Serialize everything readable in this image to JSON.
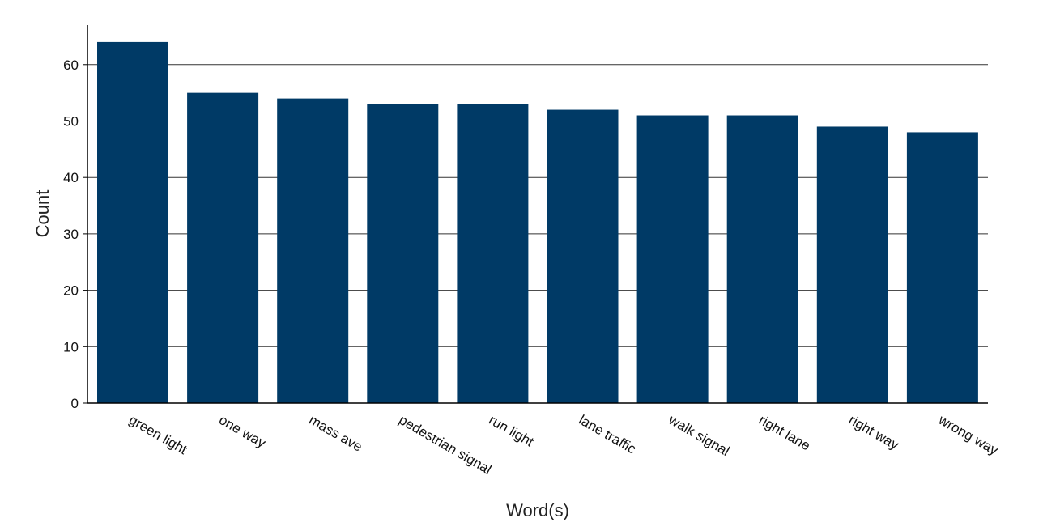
{
  "chart_data": {
    "type": "bar",
    "title": "",
    "xlabel": "Word(s)",
    "ylabel": "Count",
    "categories": [
      "green light",
      "one way",
      "mass ave",
      "pedestrian signal",
      "run light",
      "lane traffic",
      "walk signal",
      "right lane",
      "right way",
      "wrong way"
    ],
    "values": [
      64,
      55,
      54,
      53,
      53,
      52,
      51,
      51,
      49,
      48
    ],
    "ylim": [
      0,
      67
    ],
    "yticks": [
      0,
      10,
      20,
      30,
      40,
      50,
      60
    ],
    "grid": true,
    "bar_color": "#003a66",
    "grid_color": "#333333"
  }
}
